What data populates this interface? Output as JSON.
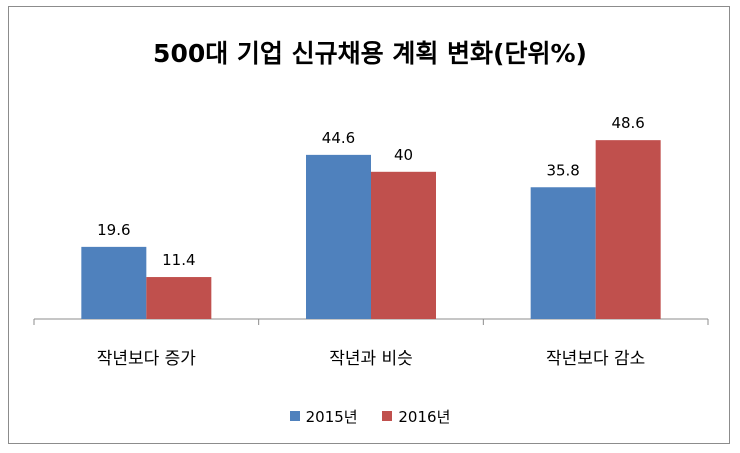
{
  "chart_data": {
    "type": "bar",
    "title": "500대 기업 신규채용 계획 변화(단위%)",
    "categories": [
      "작년보다 증가",
      "작년과 비슷",
      "작년보다 감소"
    ],
    "series": [
      {
        "name": "2015년",
        "values": [
          19.6,
          44.6,
          35.8
        ],
        "color": "#4f81bd"
      },
      {
        "name": "2016년",
        "values": [
          11.4,
          40,
          48.6
        ],
        "color": "#c0504d"
      }
    ],
    "value_labels": [
      [
        "19.6",
        "44.6",
        "35.8"
      ],
      [
        "11.4",
        "40",
        "48.6"
      ]
    ],
    "xlabel": "",
    "ylabel": "",
    "ylim": [
      0,
      60
    ],
    "grid": false,
    "legend_position": "bottom"
  }
}
